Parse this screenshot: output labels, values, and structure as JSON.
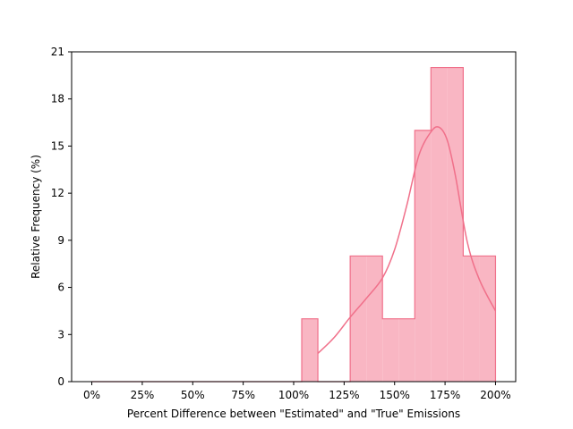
{
  "chart_data": {
    "type": "bar",
    "title": "",
    "xlabel": "Percent Difference between \"Estimated\" and \"True\" Emissions",
    "ylabel": "Relative Frequency (%)",
    "x_unit": "percent",
    "xlim": [
      -10,
      210
    ],
    "ylim": [
      0,
      21
    ],
    "x_ticks": [
      0,
      25,
      50,
      75,
      100,
      125,
      150,
      175,
      200
    ],
    "x_tick_labels": [
      "0%",
      "25%",
      "50%",
      "75%",
      "100%",
      "125%",
      "150%",
      "175%",
      "200%"
    ],
    "y_ticks": [
      0,
      3,
      6,
      9,
      12,
      15,
      18,
      21
    ],
    "y_tick_labels": [
      "0",
      "3",
      "6",
      "9",
      "12",
      "15",
      "18",
      "21"
    ],
    "histogram": {
      "bin_edges": [
        0,
        8,
        16,
        24,
        32,
        40,
        48,
        56,
        64,
        72,
        80,
        88,
        96,
        104,
        112,
        120,
        128,
        136,
        144,
        152,
        160,
        168,
        176,
        184,
        192,
        200
      ],
      "values": [
        0,
        0,
        0,
        0,
        0,
        0,
        0,
        0,
        0,
        0,
        0,
        0,
        0,
        4,
        0,
        0,
        8,
        8,
        4,
        4,
        16,
        20,
        20,
        8,
        8
      ]
    },
    "kde": {
      "x": [
        112,
        120,
        128,
        136,
        144,
        150,
        156,
        162,
        168,
        172,
        176,
        180,
        186,
        192,
        200
      ],
      "y": [
        1.8,
        2.8,
        4.1,
        5.3,
        6.6,
        8.4,
        11.2,
        14.4,
        15.9,
        16.2,
        15.4,
        13.2,
        8.9,
        6.5,
        4.5
      ]
    },
    "grid": false,
    "colors": {
      "fill": "#f9b6c3",
      "edge": "#f0708a",
      "kde": "#f0708a"
    }
  }
}
